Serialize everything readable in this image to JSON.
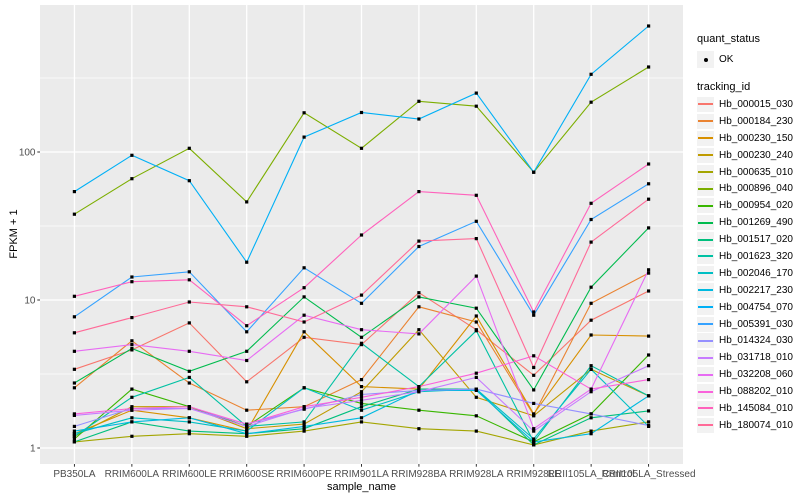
{
  "figure": {
    "xlabel": "sample_name",
    "ylabel": "FPKM + 1"
  },
  "legend": {
    "quant_status_title": "quant_status",
    "quant_status_items": [
      {
        "label": "OK"
      }
    ],
    "tracking_id_title": "tracking_id"
  },
  "chart_data": {
    "type": "line",
    "x_type": "categorical",
    "title": "",
    "xlabel": "sample_name",
    "ylabel": "FPKM + 1",
    "y_scale": "log10",
    "y_ticks": [
      1,
      10,
      100
    ],
    "y_tick_labels": [
      "1",
      "10",
      "100"
    ],
    "y_minor_ticks": [
      3.162,
      31.62,
      316.2
    ],
    "ylim": [
      1,
      1000
    ],
    "grid": true,
    "legend_position": "right",
    "panel_bg": "#EBEBEB",
    "grid_color": "#FFFFFF",
    "axis_text_color": "#4D4D4D",
    "tick_mark_color": "#333333",
    "point_color": "#000000",
    "quant_status": "OK",
    "categories": [
      "PB350LA",
      "RRIM600LA",
      "RRIM600LE",
      "RRIM600SE",
      "RRIM600PE",
      "RRIM901LA",
      "RRIM928BA",
      "RRIM928LA",
      "RRIM928LE",
      "RRII105LA_Control",
      "RRII105LA_Stressed"
    ],
    "series": [
      {
        "name": "Hb_000015_030",
        "color": "#F8766D",
        "values": [
          3.4,
          4.6,
          7.0,
          2.8,
          5.6,
          5.0,
          11.2,
          6.3,
          3.1,
          7.3,
          11.5
        ]
      },
      {
        "name": "Hb_000184_230",
        "color": "#EA8331",
        "values": [
          2.55,
          5.3,
          2.75,
          1.8,
          1.9,
          2.9,
          9.0,
          7.1,
          1.67,
          9.5,
          15.2
        ]
      },
      {
        "name": "Hb_000230_150",
        "color": "#D89000",
        "values": [
          1.25,
          1.8,
          1.6,
          1.3,
          6.1,
          2.6,
          2.5,
          7.8,
          1.7,
          5.8,
          5.7
        ]
      },
      {
        "name": "Hb_000230_240",
        "color": "#C09B00",
        "values": [
          1.2,
          1.9,
          1.9,
          1.35,
          1.45,
          2.4,
          6.3,
          2.2,
          1.65,
          3.4,
          2.25
        ]
      },
      {
        "name": "Hb_000635_010",
        "color": "#A3A500",
        "values": [
          1.1,
          1.2,
          1.25,
          1.2,
          1.3,
          1.5,
          1.35,
          1.3,
          1.05,
          1.3,
          1.5
        ]
      },
      {
        "name": "Hb_000896_040",
        "color": "#7CAE00",
        "values": [
          38,
          66,
          106,
          46,
          184,
          106,
          220,
          204,
          73,
          217,
          375
        ]
      },
      {
        "name": "Hb_000954_020",
        "color": "#39B600",
        "values": [
          1.15,
          2.5,
          1.9,
          1.4,
          2.55,
          2.0,
          1.8,
          1.65,
          1.1,
          1.7,
          4.25
        ]
      },
      {
        "name": "Hb_001269_490",
        "color": "#00BB4E",
        "values": [
          2.75,
          4.7,
          3.3,
          4.5,
          10.5,
          5.6,
          10.5,
          8.8,
          2.47,
          12.2,
          30.7
        ]
      },
      {
        "name": "Hb_001517_020",
        "color": "#00BF7D",
        "values": [
          1.1,
          1.5,
          1.3,
          1.25,
          1.35,
          1.9,
          2.5,
          2.5,
          1.05,
          1.6,
          1.78
        ]
      },
      {
        "name": "Hb_001623_320",
        "color": "#00C1A3",
        "values": [
          1.2,
          2.2,
          3.0,
          1.4,
          1.5,
          5.1,
          2.6,
          6.2,
          1.1,
          3.6,
          2.25
        ]
      },
      {
        "name": "Hb_002046_170",
        "color": "#00BFC4",
        "values": [
          1.25,
          1.6,
          1.5,
          1.3,
          2.55,
          1.8,
          2.4,
          2.5,
          1.15,
          3.4,
          1.4
        ]
      },
      {
        "name": "Hb_002217_230",
        "color": "#00BAE0",
        "values": [
          1.3,
          1.5,
          1.6,
          1.25,
          1.4,
          1.6,
          2.45,
          2.45,
          1.1,
          1.25,
          2.25
        ]
      },
      {
        "name": "Hb_004754_070",
        "color": "#00B0F6",
        "values": [
          54,
          95,
          64,
          18,
          126,
          185,
          167,
          250,
          73,
          335,
          710
        ]
      },
      {
        "name": "Hb_005391_030",
        "color": "#35A2FF",
        "values": [
          7.7,
          14.3,
          15.5,
          6.1,
          16.5,
          9.5,
          23,
          34,
          7.9,
          35,
          61
        ]
      },
      {
        "name": "Hb_014324_030",
        "color": "#9590FF",
        "values": [
          1.4,
          1.85,
          1.85,
          1.45,
          1.83,
          2.3,
          2.45,
          2.5,
          2.0,
          1.7,
          1.42
        ]
      },
      {
        "name": "Hb_031718_010",
        "color": "#C77CFF",
        "values": [
          1.66,
          1.8,
          1.85,
          1.4,
          1.85,
          2.1,
          2.4,
          3.0,
          1.3,
          2.4,
          3.6
        ]
      },
      {
        "name": "Hb_032208_060",
        "color": "#E76BF3",
        "values": [
          4.5,
          5.0,
          4.5,
          3.9,
          7.9,
          6.3,
          5.9,
          14.5,
          1.35,
          2.5,
          16.0
        ]
      },
      {
        "name": "Hb_088202_010",
        "color": "#FA62DB",
        "values": [
          1.7,
          1.85,
          1.9,
          1.45,
          1.9,
          2.2,
          2.6,
          3.2,
          4.2,
          2.5,
          2.9
        ]
      },
      {
        "name": "Hb_145084_010",
        "color": "#FF62BC",
        "values": [
          10.6,
          13.3,
          13.7,
          6.7,
          12.1,
          27.5,
          54,
          51,
          8.3,
          45,
          83
        ]
      },
      {
        "name": "Hb_180074_010",
        "color": "#FF6A98",
        "values": [
          6.0,
          7.6,
          9.7,
          9.0,
          7.1,
          10.8,
          25,
          26,
          3.5,
          24.6,
          48
        ]
      }
    ]
  }
}
